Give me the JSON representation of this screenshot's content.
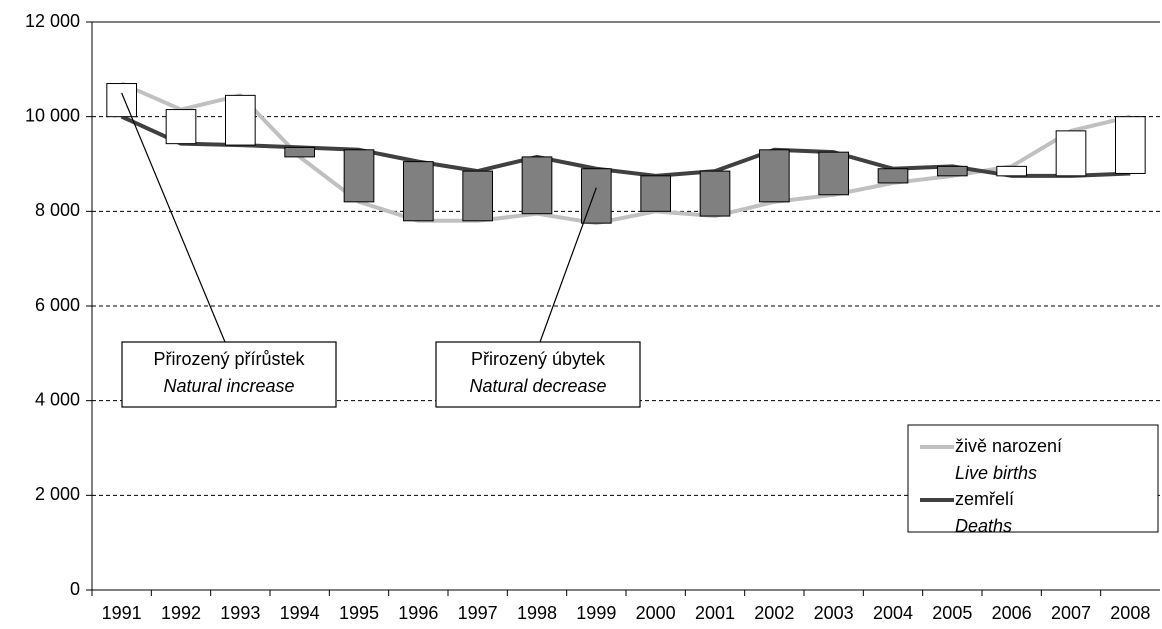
{
  "chart_data": {
    "type": "line",
    "categories": [
      "1991",
      "1992",
      "1993",
      "1994",
      "1995",
      "1996",
      "1997",
      "1998",
      "1999",
      "2000",
      "2001",
      "2002",
      "2003",
      "2004",
      "2005",
      "2006",
      "2007",
      "2008"
    ],
    "series": [
      {
        "name": "živě narození",
        "name_en": "Live births",
        "color": "#c0c0c0",
        "values": [
          10700,
          10150,
          10450,
          9150,
          8200,
          7800,
          7800,
          7950,
          7750,
          8000,
          7900,
          8200,
          8350,
          8600,
          8750,
          8950,
          9700,
          10000
        ]
      },
      {
        "name": "zemřelí",
        "name_en": "Deaths",
        "color": "#404040",
        "values": [
          10000,
          9430,
          9400,
          9350,
          9300,
          9050,
          8850,
          9150,
          8900,
          8750,
          8850,
          9300,
          9250,
          8900,
          8950,
          8750,
          8750,
          8800
        ]
      }
    ],
    "updown_bars": {
      "up_color": "#ffffff",
      "down_color": "#808080"
    },
    "ylim": [
      0,
      12000
    ],
    "yticks": [
      0,
      {
        "value": 2000,
        "label": "2 000"
      },
      {
        "value": 4000,
        "label": "4 000"
      },
      {
        "value": 6000,
        "label": "6 000"
      },
      {
        "value": 8000,
        "label": "8 000"
      },
      {
        "value": 10000,
        "label": "10 000"
      },
      {
        "value": 12000,
        "label": "12 000"
      }
    ],
    "grid": true,
    "legend": "lower right",
    "annotations": [
      {
        "text": "Přirozený přírůstek",
        "text_en": "Natural increase",
        "category": "1991"
      },
      {
        "text": "Přirozený úbytek",
        "text_en": "Natural decrease",
        "category": "1999"
      }
    ]
  }
}
